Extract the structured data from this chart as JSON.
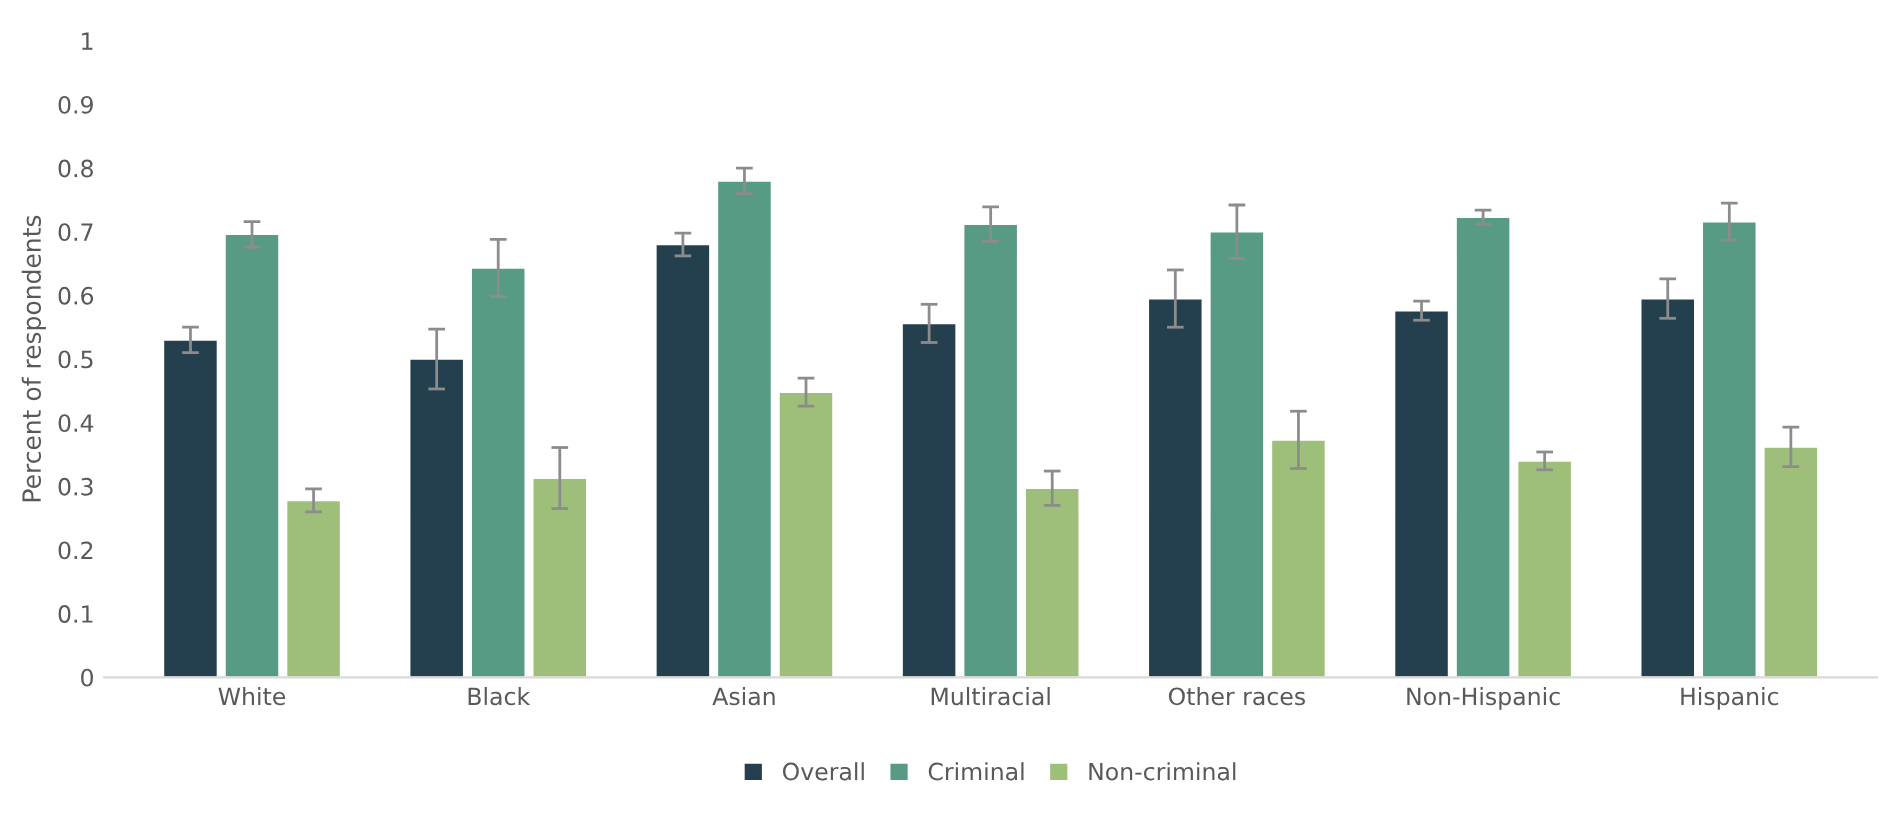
{
  "chart_data": {
    "type": "bar",
    "ylabel": "Percent of respondents",
    "categories": [
      "White",
      "Black",
      "Asian",
      "Multiracial",
      "Other races",
      "Non-Hispanic",
      "Hispanic"
    ],
    "series": [
      {
        "name": "Overall",
        "color": "#243f4e",
        "values": [
          0.53,
          0.5,
          0.68,
          0.556,
          0.595,
          0.576,
          0.595
        ],
        "errors": [
          0.02,
          0.047,
          0.018,
          0.03,
          0.045,
          0.015,
          0.031
        ]
      },
      {
        "name": "Criminal",
        "color": "#579b84",
        "values": [
          0.696,
          0.643,
          0.78,
          0.712,
          0.7,
          0.723,
          0.716
        ],
        "errors": [
          0.02,
          0.045,
          0.02,
          0.027,
          0.042,
          0.011,
          0.029
        ]
      },
      {
        "name": "Non-criminal",
        "color": "#9dbf7a",
        "values": [
          0.278,
          0.313,
          0.448,
          0.297,
          0.373,
          0.34,
          0.362
        ],
        "errors": [
          0.018,
          0.048,
          0.022,
          0.027,
          0.045,
          0.014,
          0.031
        ]
      }
    ],
    "ylim": [
      0,
      1
    ],
    "yticks": [
      0,
      0.1,
      0.2,
      0.3,
      0.4,
      0.5,
      0.6,
      0.7,
      0.8,
      0.9,
      1
    ],
    "grid": false,
    "legend": "bottom"
  }
}
